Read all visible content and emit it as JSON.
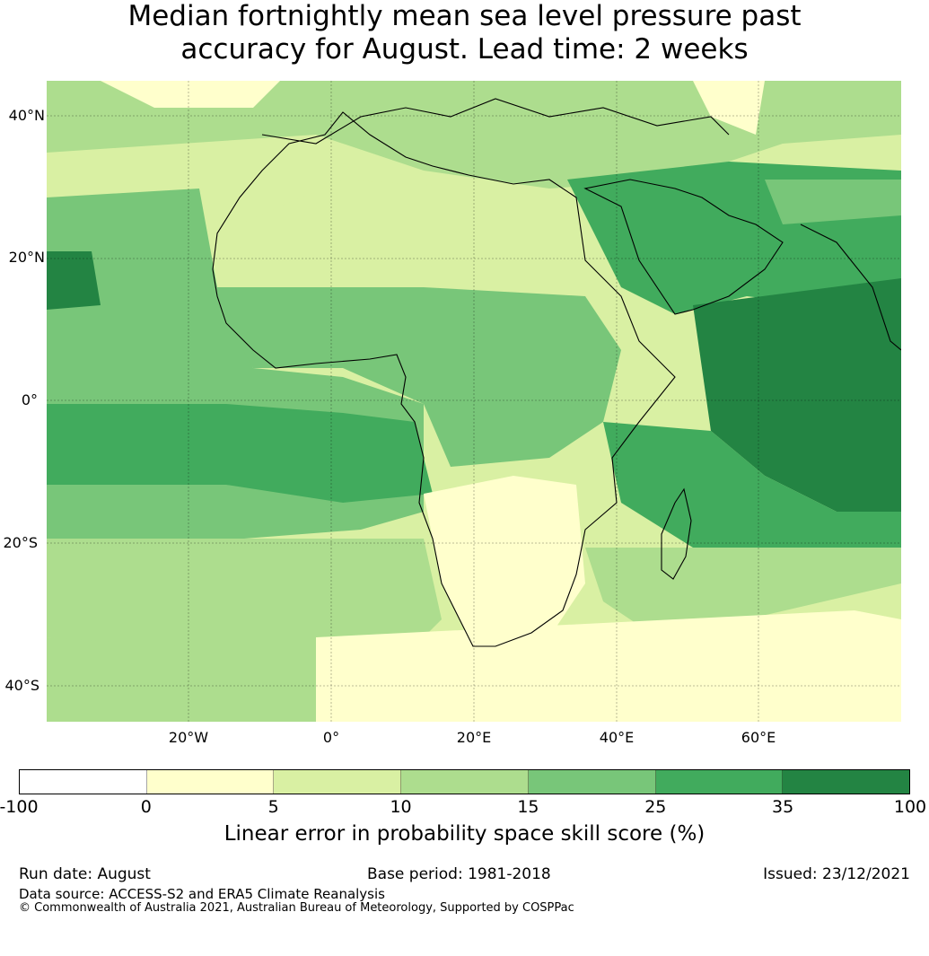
{
  "title_line1": "Median fortnightly mean sea level pressure past",
  "title_line2": "accuracy for August. Lead time: 2 weeks",
  "map": {
    "extent": {
      "lon_min": -40,
      "lon_max": 80,
      "lat_min": -45,
      "lat_max": 45
    },
    "gridlines": true,
    "lat_labels": [
      "40°N",
      "20°N",
      "0°",
      "20°S",
      "40°S"
    ],
    "lon_labels": [
      "20°W",
      "0°",
      "20°E",
      "40°E",
      "60°E"
    ],
    "colors": {
      "c0": "#ffffff",
      "c1": "#ffffcc",
      "c2": "#d9f0a3",
      "c3": "#addd8e",
      "c4": "#78c679",
      "c5": "#41ab5d",
      "c6": "#238443"
    }
  },
  "colorbar": {
    "bins": [
      "#ffffff",
      "#ffffcc",
      "#d9f0a3",
      "#addd8e",
      "#78c679",
      "#41ab5d",
      "#238443"
    ],
    "ticks": [
      "-100",
      "0",
      "5",
      "10",
      "15",
      "25",
      "35",
      "100"
    ],
    "label": "Linear error in probability space skill score (%)"
  },
  "footer": {
    "run_date": "Run date: August",
    "base_period": "Base period: 1981-2018",
    "issued": "Issued: 23/12/2021",
    "data_source": "Data source: ACCESS-S2 and ERA5 Climate Reanalysis",
    "copyright": "© Commonwealth of Australia 2021, Australian Bureau of Meteorology, Supported by COSPPac"
  }
}
